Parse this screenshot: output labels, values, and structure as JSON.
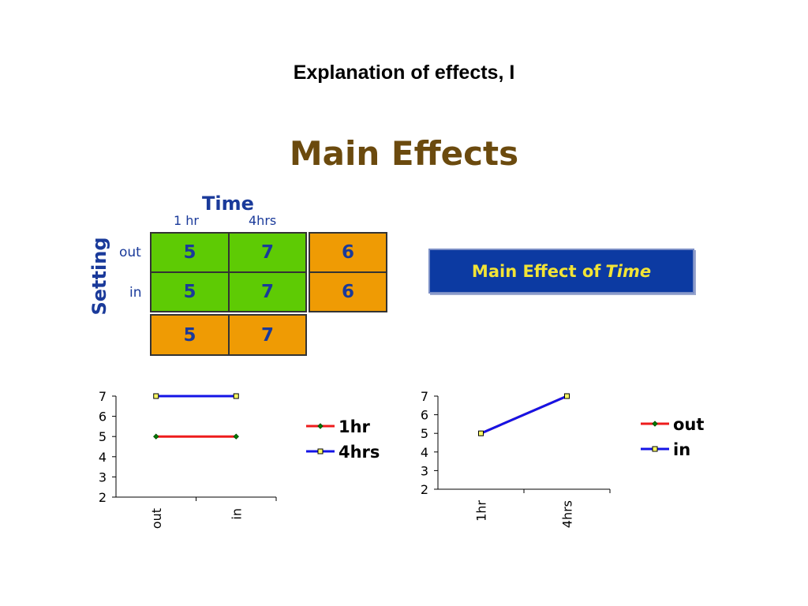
{
  "slide": {
    "title": "Explanation of effects, I",
    "heading": "Main Effects"
  },
  "table": {
    "col_factor": "Time",
    "row_factor": "Setting",
    "col_levels": [
      "1 hr",
      "4hrs"
    ],
    "row_levels": [
      "out",
      "in"
    ],
    "cells": [
      [
        "5",
        "7"
      ],
      [
        "5",
        "7"
      ]
    ],
    "row_means": [
      "6",
      "6"
    ],
    "col_means": [
      "5",
      "7"
    ]
  },
  "effect_box": {
    "prefix": "Main Effect of",
    "factor": "Time"
  },
  "colors": {
    "red_series": "#ee1c1c",
    "blue_series": "#1414e6",
    "green_cell": "#5ecb04",
    "orange_cell": "#ef9b04",
    "factor_text": "#1a3a9a",
    "heading_text": "#6b4a0e",
    "box_fill": "#0c3aa2",
    "box_text": "#f2e436"
  },
  "chart_data": [
    {
      "type": "line",
      "categories": [
        "out",
        "in"
      ],
      "ylim": [
        2,
        7
      ],
      "yticks": [
        2,
        3,
        4,
        5,
        6,
        7
      ],
      "legend": "right",
      "series": [
        {
          "name": "1hr",
          "values": [
            5,
            5
          ],
          "color": "#ee1c1c",
          "marker": "diamond"
        },
        {
          "name": "4hrs",
          "values": [
            7,
            7
          ],
          "color": "#1414e6",
          "marker": "square"
        }
      ]
    },
    {
      "type": "line",
      "categories": [
        "1hr",
        "4hrs"
      ],
      "ylim": [
        2,
        7
      ],
      "yticks": [
        2,
        3,
        4,
        5,
        6,
        7
      ],
      "legend": "right",
      "series": [
        {
          "name": "out",
          "values": [
            5,
            7
          ],
          "color": "#ee1c1c",
          "marker": "diamond"
        },
        {
          "name": "in",
          "values": [
            5,
            7
          ],
          "color": "#1414e6",
          "marker": "square"
        }
      ]
    }
  ]
}
